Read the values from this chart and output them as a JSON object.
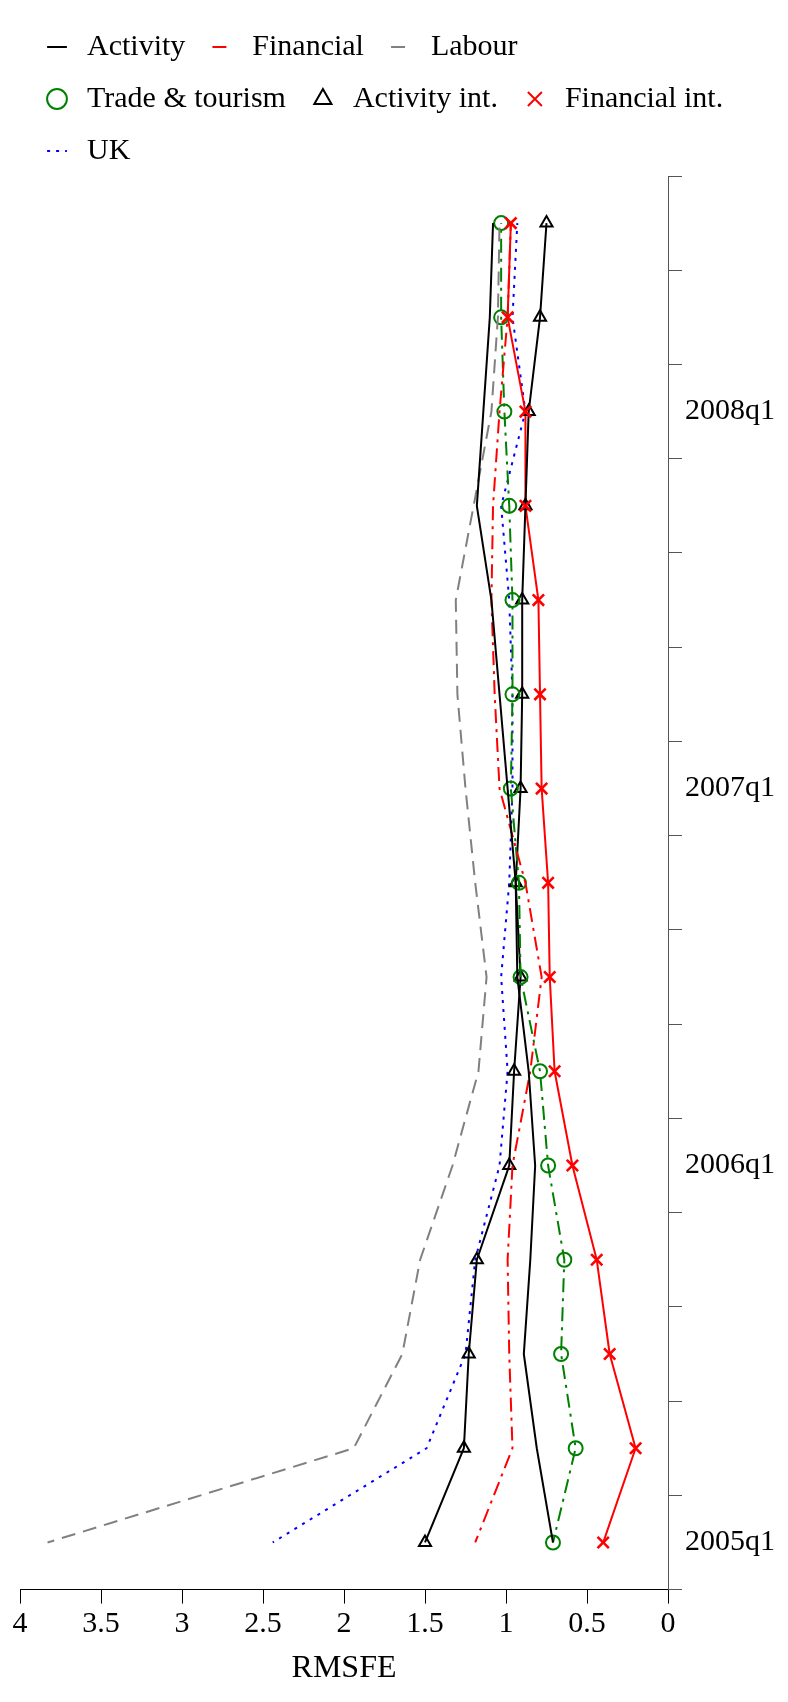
{
  "chart_data": {
    "type": "line",
    "orientation": "horizontal",
    "xlabel": "RMSFE",
    "xlim": [
      4,
      0
    ],
    "xticks": [
      4,
      3.5,
      3,
      2.5,
      2,
      1.5,
      1,
      0.5,
      0
    ],
    "categories": [
      null,
      null,
      "2008q1",
      null,
      null,
      null,
      "2007q1",
      null,
      null,
      null,
      "2006q1",
      null,
      null,
      null,
      "2005q1"
    ],
    "grid": false,
    "legend": "top",
    "series": [
      {
        "name": "Activity",
        "color": "#000000",
        "line_style": "solid",
        "marker": "none",
        "values": [
          1.08,
          1.1,
          1.14,
          1.18,
          1.09,
          1.04,
          0.99,
          0.94,
          0.93,
          0.86,
          0.82,
          0.85,
          0.89,
          0.81,
          0.71
        ]
      },
      {
        "name": "Financial",
        "color": "#ff0000",
        "line_style": "dashdot",
        "marker": "none",
        "values": [
          0.97,
          0.99,
          1.04,
          1.08,
          1.09,
          1.07,
          1.04,
          0.88,
          0.78,
          0.85,
          0.96,
          0.99,
          0.98,
          0.96,
          1.19
        ]
      },
      {
        "name": "Labour",
        "color": "#808080",
        "line_style": "dashed",
        "marker": "none",
        "values": [
          1.04,
          1.05,
          1.09,
          1.2,
          1.31,
          1.3,
          1.25,
          1.19,
          1.12,
          1.17,
          1.33,
          1.53,
          1.64,
          1.94,
          3.83
        ]
      },
      {
        "name": "Trade & tourism",
        "color": "#008000",
        "line_style": "dashdot",
        "marker": "circle",
        "values": [
          1.03,
          1.03,
          1.01,
          0.98,
          0.96,
          0.96,
          0.97,
          0.92,
          0.91,
          0.79,
          0.74,
          0.64,
          0.66,
          0.57,
          0.71
        ]
      },
      {
        "name": "Activity int.",
        "color": "#000000",
        "line_style": "solid",
        "marker": "triangle",
        "values": [
          0.75,
          0.79,
          0.86,
          0.88,
          0.9,
          0.9,
          0.91,
          0.94,
          0.91,
          0.95,
          0.98,
          1.18,
          1.23,
          1.26,
          1.5
        ]
      },
      {
        "name": "Financial int.",
        "color": "#ff0000",
        "line_style": "solid",
        "marker": "cross",
        "values": [
          0.97,
          0.99,
          0.88,
          0.88,
          0.8,
          0.79,
          0.78,
          0.74,
          0.73,
          0.7,
          0.59,
          0.44,
          0.36,
          0.2,
          0.4
        ]
      },
      {
        "name": "UK",
        "color": "#0000ff",
        "line_style": "dotted",
        "marker": "none",
        "values": [
          0.93,
          0.96,
          0.88,
          1.03,
          0.98,
          0.96,
          0.96,
          0.98,
          1.03,
          0.99,
          1.04,
          1.19,
          1.25,
          1.49,
          2.44
        ]
      }
    ]
  }
}
